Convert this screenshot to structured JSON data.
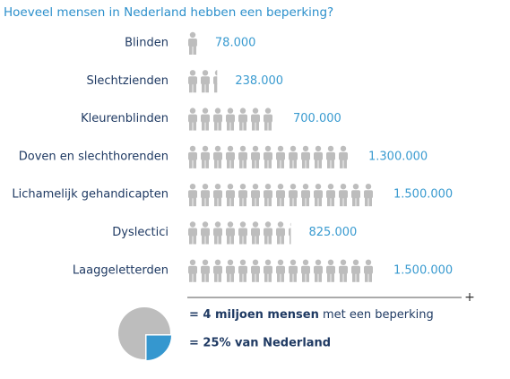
{
  "chart_data": {
    "type": "pictogram",
    "title": "Hoeveel mensen in Nederland hebben een beperking?",
    "categories": [
      "Blinden",
      "Slechtzienden",
      "Kleurenblinden",
      "Doven en slechthorenden",
      "Lichamelijk gehandicapten",
      "Dyslectici",
      "Laaggeletterden"
    ],
    "values": [
      78000,
      238000,
      700000,
      1300000,
      1500000,
      825000,
      1500000
    ],
    "value_labels": [
      "78.000",
      "238.000",
      "700.000",
      "1.300.000",
      "1.500.000",
      "825.000",
      "1.500.000"
    ],
    "color": "#bdbdbd",
    "total_symbol": "+",
    "summary": {
      "total_bold": "= 4 miljoen mensen",
      "total_rest": "met een beperking",
      "share": 25,
      "share_label": "= 25% van Nederland",
      "share_color": "#3597cf",
      "rest_color": "#bdbdbd"
    }
  }
}
